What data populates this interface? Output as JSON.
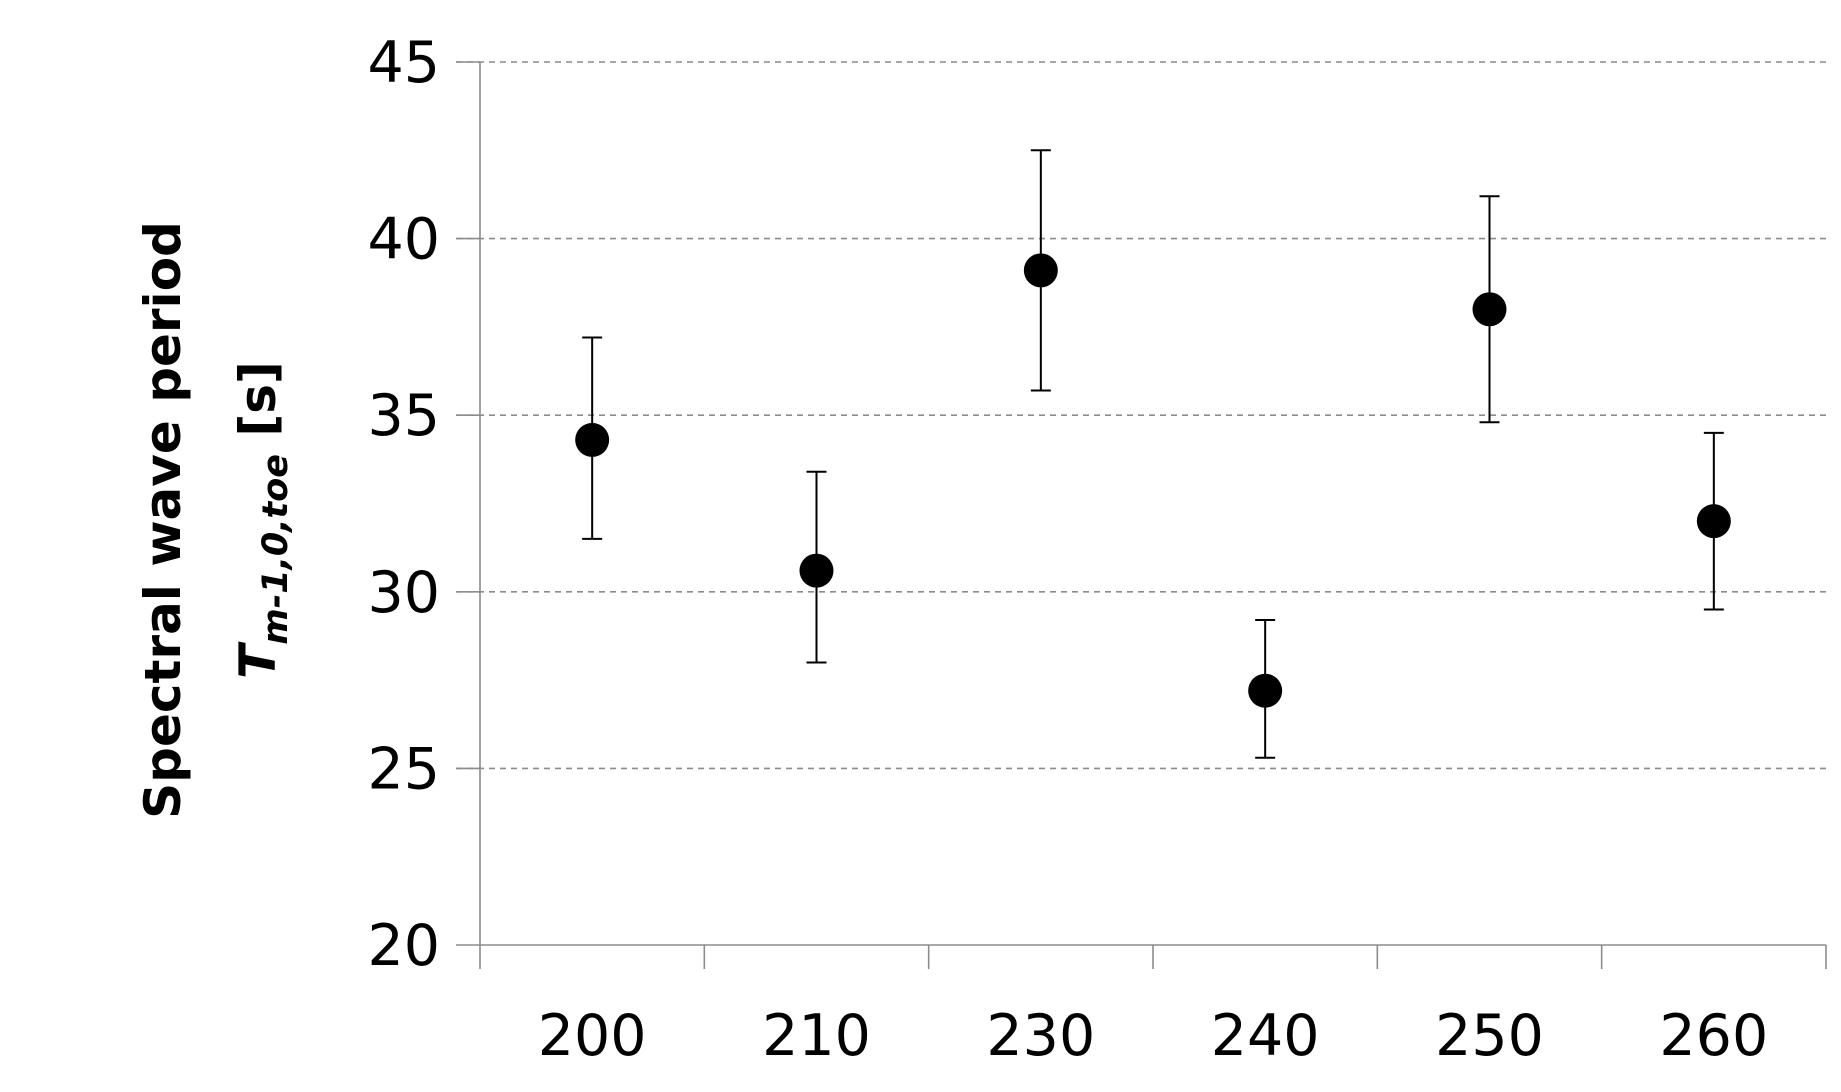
{
  "chart_data": {
    "type": "scatter",
    "title": "",
    "xlabel": "",
    "ylabel": {
      "line1": "Spectral wave period",
      "symbol": "T",
      "subscript": "m-1,0,toe",
      "unit": " [s]"
    },
    "categories": [
      "200",
      "210",
      "230",
      "240",
      "250",
      "260"
    ],
    "series": [
      {
        "values": [
          34.3,
          30.6,
          39.1,
          27.2,
          38.0,
          32.0
        ],
        "error_upper": [
          37.2,
          33.4,
          42.5,
          29.2,
          41.2,
          34.5
        ],
        "error_lower": [
          31.5,
          28.0,
          35.7,
          25.3,
          34.8,
          29.5
        ]
      }
    ],
    "ylim": [
      20,
      45
    ],
    "yticks": [
      20,
      25,
      30,
      35,
      40,
      45
    ],
    "grid": "horizontal-dashed",
    "legend": "none",
    "colors": {
      "marker": "#000000",
      "grid": "#8c8c8c",
      "axis": "#8c8c8c",
      "text": "#000000"
    }
  }
}
